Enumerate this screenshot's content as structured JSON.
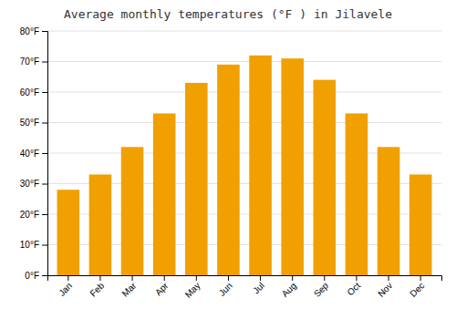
{
  "chart_data": {
    "type": "bar",
    "title": "Average monthly temperatures (°F ) in Jilavele",
    "categories": [
      "Jan",
      "Feb",
      "Mar",
      "Apr",
      "May",
      "Jun",
      "Jul",
      "Aug",
      "Sep",
      "Oct",
      "Nov",
      "Dec"
    ],
    "values": [
      28,
      33,
      42,
      53,
      63,
      69,
      72,
      71,
      64,
      53,
      42,
      33
    ],
    "color": "#F0A000",
    "ylim": [
      0,
      80
    ],
    "yticks": [
      {
        "value": 0,
        "label": "0°F"
      },
      {
        "value": 10,
        "label": "10°F"
      },
      {
        "value": 20,
        "label": "20°F"
      },
      {
        "value": 30,
        "label": "30°F"
      },
      {
        "value": 40,
        "label": "40°F"
      },
      {
        "value": 50,
        "label": "50°F"
      },
      {
        "value": 60,
        "label": "60°F"
      },
      {
        "value": 70,
        "label": "70°F"
      },
      {
        "value": 80,
        "label": "80°F"
      }
    ],
    "grid": true
  }
}
